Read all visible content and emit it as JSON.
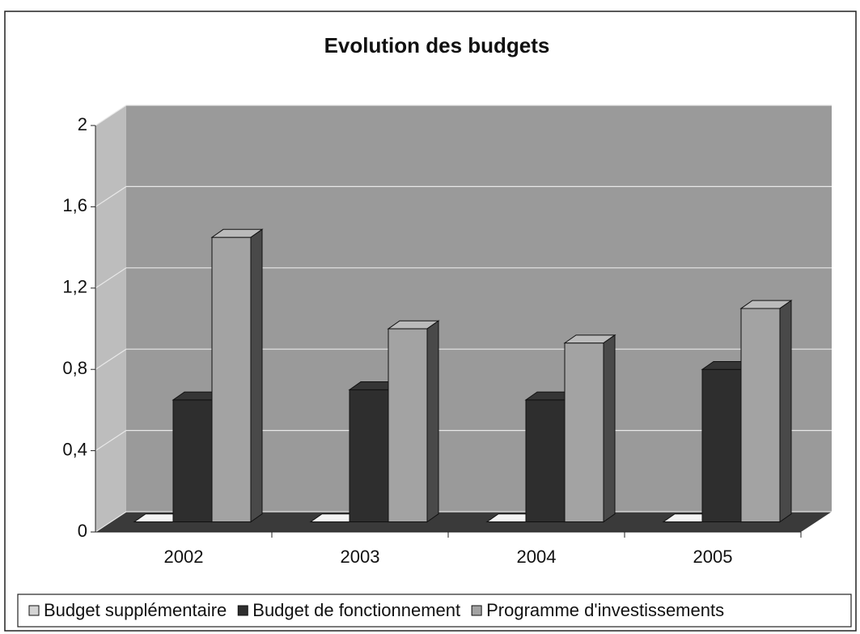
{
  "chart_data": {
    "type": "bar3d",
    "title": "Evolution des budgets",
    "categories": [
      "2002",
      "2003",
      "2004",
      "2005"
    ],
    "series": [
      {
        "name": "Budget supplémentaire",
        "color": "#d4d4d4",
        "values": [
          0,
          0,
          0,
          0
        ]
      },
      {
        "name": "Budget de fonctionnement",
        "color": "#2e2e2e",
        "values": [
          0.6,
          0.65,
          0.6,
          0.75
        ]
      },
      {
        "name": "Programme d'investissements",
        "color": "#a3a3a3",
        "values": [
          1.4,
          0.95,
          0.88,
          1.05
        ]
      }
    ],
    "ylim": [
      0,
      2
    ],
    "yticks": [
      0,
      {
        "value": 0.4,
        "label": "0,4"
      },
      {
        "value": 0.8,
        "label": "0,8"
      },
      {
        "value": 1.2,
        "label": "1,2"
      },
      {
        "value": 1.6,
        "label": "1,6"
      },
      2
    ],
    "grid": true,
    "legend": "bottom"
  }
}
